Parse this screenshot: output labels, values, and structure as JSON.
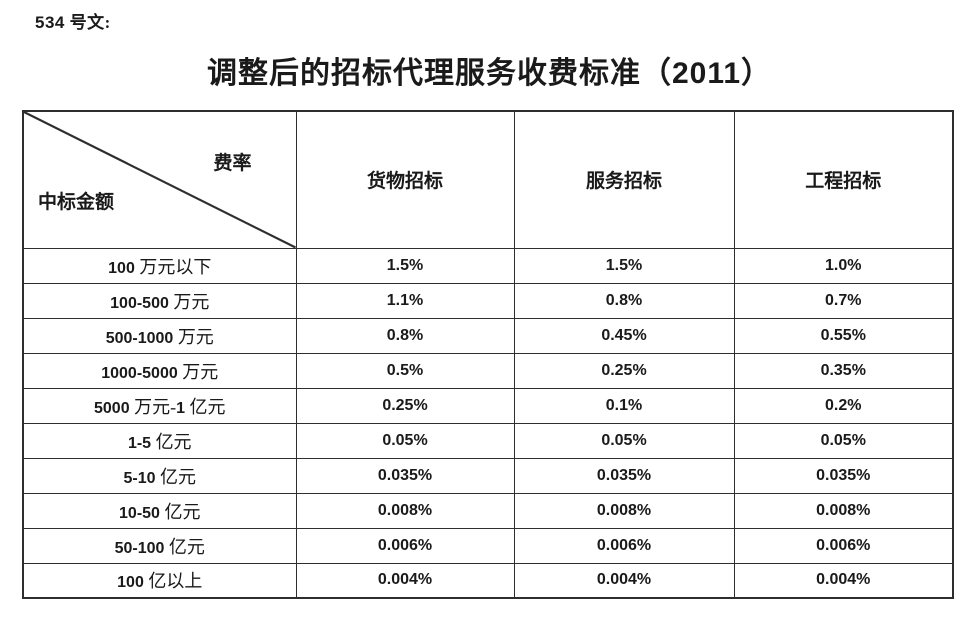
{
  "page": {
    "doc_number": "534 号文:",
    "title": "调整后的招标代理服务收费标准（2011）"
  },
  "table": {
    "corner": {
      "rate_label": "费率",
      "amount_label": "中标金额"
    },
    "columns": [
      "货物招标",
      "服务招标",
      "工程招标"
    ],
    "rows": [
      {
        "amount": "100 万元以下",
        "values": [
          "1.5%",
          "1.5%",
          "1.0%"
        ]
      },
      {
        "amount": "100-500 万元",
        "values": [
          "1.1%",
          "0.8%",
          "0.7%"
        ]
      },
      {
        "amount": "500-1000 万元",
        "values": [
          "0.8%",
          "0.45%",
          "0.55%"
        ]
      },
      {
        "amount": "1000-5000 万元",
        "values": [
          "0.5%",
          "0.25%",
          "0.35%"
        ]
      },
      {
        "amount": "5000 万元-1 亿元",
        "values": [
          "0.25%",
          "0.1%",
          "0.2%"
        ]
      },
      {
        "amount": "1-5 亿元",
        "values": [
          "0.05%",
          "0.05%",
          "0.05%"
        ]
      },
      {
        "amount": "5-10 亿元",
        "values": [
          "0.035%",
          "0.035%",
          "0.035%"
        ]
      },
      {
        "amount": "10-50 亿元",
        "values": [
          "0.008%",
          "0.008%",
          "0.008%"
        ]
      },
      {
        "amount": "50-100 亿元",
        "values": [
          "0.006%",
          "0.006%",
          "0.006%"
        ]
      },
      {
        "amount": "100 亿以上",
        "values": [
          "0.004%",
          "0.004%",
          "0.004%"
        ]
      }
    ]
  },
  "colors": {
    "text": "#1a1a1a",
    "border": "#2e2e2e",
    "background": "#ffffff"
  }
}
